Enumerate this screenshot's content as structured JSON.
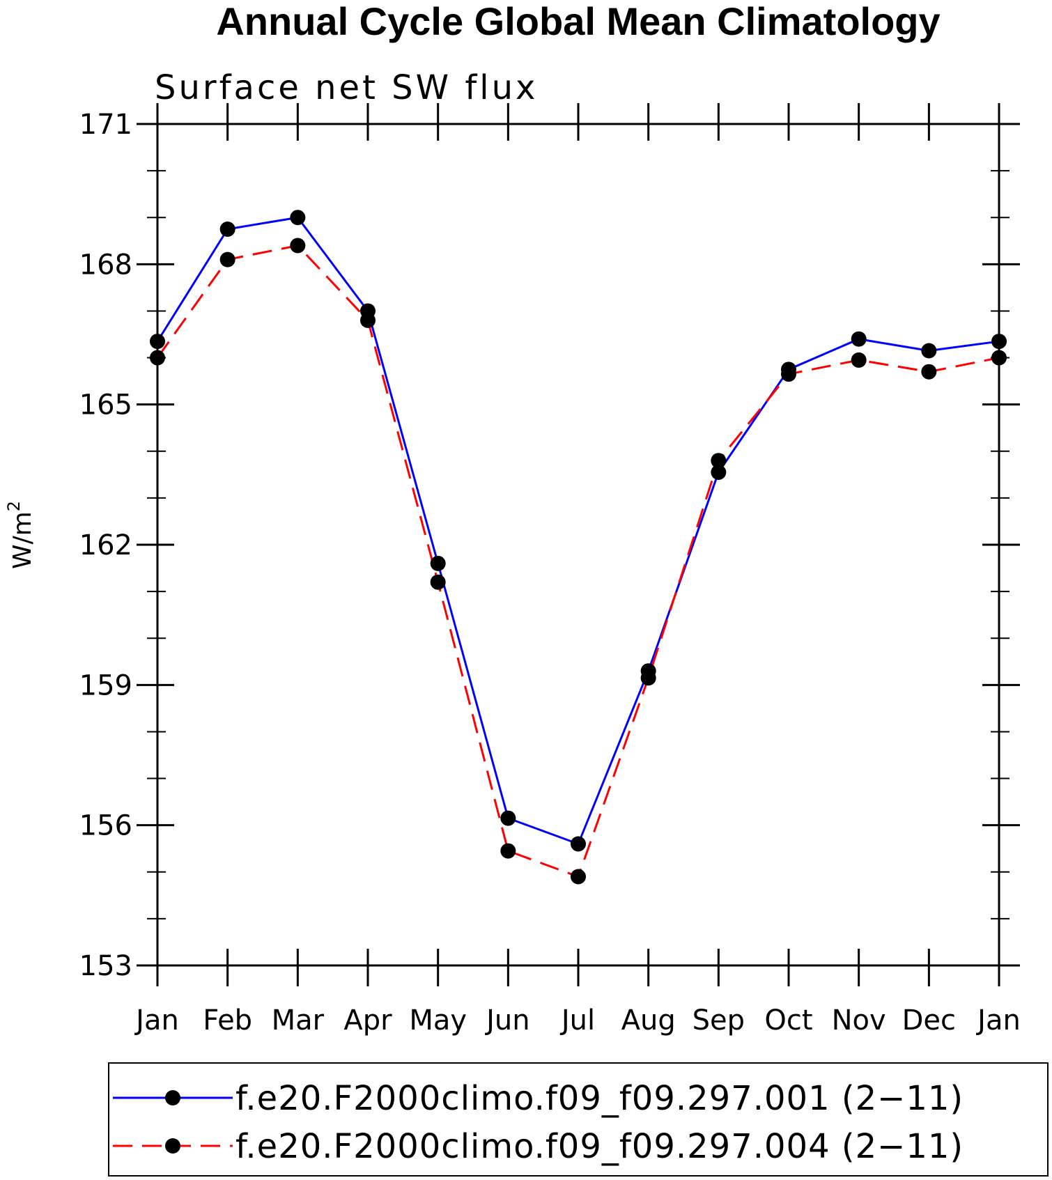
{
  "chart_data": {
    "type": "line",
    "title": "Annual Cycle Global Mean Climatology",
    "subtitle": "Surface net SW flux",
    "ylabel": "W/m",
    "ylabel_superscript": "2",
    "categories": [
      "Jan",
      "Feb",
      "Mar",
      "Apr",
      "May",
      "Jun",
      "Jul",
      "Aug",
      "Sep",
      "Oct",
      "Nov",
      "Dec",
      "Jan"
    ],
    "ylim": [
      153,
      171
    ],
    "yticks": [
      153,
      156,
      159,
      162,
      165,
      168,
      171
    ],
    "ytick_labels": [
      "153",
      "156",
      "159",
      "162",
      "165",
      "168",
      "171"
    ],
    "series": [
      {
        "name": "f.e20.F2000climo.f09_f09.297.001 (2−11)",
        "color": "#0000ff",
        "dash": "solid",
        "values": [
          166.35,
          168.75,
          169.0,
          167.0,
          161.6,
          156.15,
          155.6,
          159.3,
          163.55,
          165.75,
          166.4,
          166.15,
          166.35
        ]
      },
      {
        "name": "f.e20.F2000climo.f09_f09.297.004 (2−11)",
        "color": "#ff0000",
        "dash": "dashed",
        "values": [
          166.0,
          168.1,
          168.4,
          166.8,
          161.2,
          155.45,
          154.9,
          159.15,
          163.8,
          165.65,
          165.95,
          165.7,
          166.0
        ]
      }
    ],
    "marker": "filled-circle",
    "marker_color": "#000000",
    "legend_position": "bottom",
    "grid": false
  }
}
